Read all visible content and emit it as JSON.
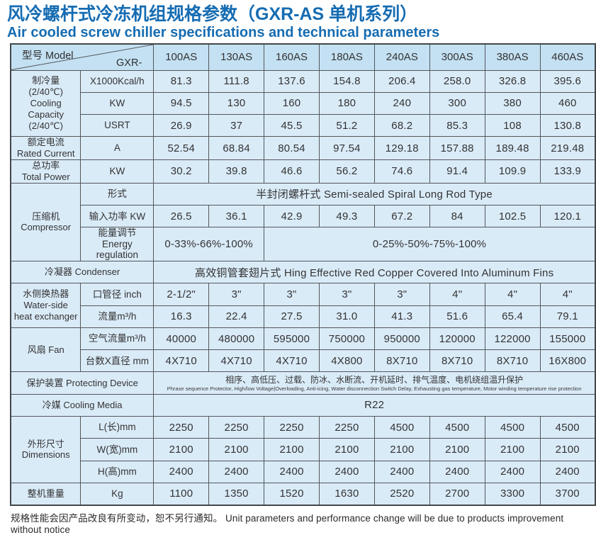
{
  "title": "风冷螺杆式冷冻机组规格参数（GXR-AS 单机系列）",
  "subtitle": "Air cooled screw chiller specifications and technical parameters",
  "footer_note": "规格性能会因产品改良有所变动，恕不另行通知。 Unit parameters and performance change will be due to products improvement without notice",
  "colors": {
    "title_blue": "#156cb2",
    "header_bg": "#c4e1f3",
    "cell_bg": "#daebf8",
    "border": "#53575a",
    "text": "#333333"
  },
  "table": {
    "header": {
      "model_label": "型号 Model",
      "model_prefix": "GXR-",
      "models": [
        "100AS",
        "130AS",
        "160AS",
        "180AS",
        "240AS",
        "300AS",
        "380AS",
        "460AS"
      ]
    },
    "rows": [
      [
        {
          "k": "label",
          "rs": 3,
          "t": "制冷量\n(2/40℃)\nCooling\nCapacity\n(2/40℃)"
        },
        {
          "k": "unit",
          "t": "X1000Kcal/h"
        },
        {
          "t": "81.3"
        },
        {
          "t": "111.8"
        },
        {
          "t": "137.6"
        },
        {
          "t": "154.8"
        },
        {
          "t": "206.4"
        },
        {
          "t": "258.0"
        },
        {
          "t": "326.8"
        },
        {
          "t": "395.6"
        }
      ],
      [
        {
          "k": "unit",
          "t": "KW"
        },
        {
          "t": "94.5"
        },
        {
          "t": "130"
        },
        {
          "t": "160"
        },
        {
          "t": "180"
        },
        {
          "t": "240"
        },
        {
          "t": "300"
        },
        {
          "t": "380"
        },
        {
          "t": "460"
        }
      ],
      [
        {
          "k": "unit",
          "t": "USRT"
        },
        {
          "t": "26.9"
        },
        {
          "t": "37"
        },
        {
          "t": "45.5"
        },
        {
          "t": "51.2"
        },
        {
          "t": "68.2"
        },
        {
          "t": "85.3"
        },
        {
          "t": "108"
        },
        {
          "t": "130.8"
        }
      ],
      [
        {
          "k": "label",
          "t": "额定电流\nRated Current"
        },
        {
          "k": "unit",
          "t": "A"
        },
        {
          "t": "52.54"
        },
        {
          "t": "68.84"
        },
        {
          "t": "80.54"
        },
        {
          "t": "97.54"
        },
        {
          "t": "129.18"
        },
        {
          "t": "157.88"
        },
        {
          "t": "189.48"
        },
        {
          "t": "219.48"
        }
      ],
      [
        {
          "k": "label",
          "t": "总功率\nTotal Power"
        },
        {
          "k": "unit",
          "t": "KW"
        },
        {
          "t": "30.2"
        },
        {
          "t": "39.8"
        },
        {
          "t": "46.6"
        },
        {
          "t": "56.2"
        },
        {
          "t": "74.6"
        },
        {
          "t": "91.4"
        },
        {
          "t": "109.9"
        },
        {
          "t": "133.9"
        }
      ],
      [
        {
          "k": "label",
          "rs": 3,
          "t": "压缩机\nCompressor"
        },
        {
          "k": "unit",
          "t": "形式"
        },
        {
          "cs": 8,
          "t": "半封闭螺杆式 Semi-sealed Spiral Long Rod Type"
        }
      ],
      [
        {
          "k": "unit",
          "t": "输入功率 KW"
        },
        {
          "t": "26.5"
        },
        {
          "t": "36.1"
        },
        {
          "t": "42.9"
        },
        {
          "t": "49.3"
        },
        {
          "t": "67.2"
        },
        {
          "t": "84"
        },
        {
          "t": "102.5"
        },
        {
          "t": "120.1"
        }
      ],
      [
        {
          "k": "unit",
          "t": "能量调节\nEnergy regulation"
        },
        {
          "cs": 2,
          "t": "0-33%-66%-100%"
        },
        {
          "cs": 6,
          "t": "0-25%-50%-75%-100%"
        }
      ],
      [
        {
          "k": "label",
          "cs": 2,
          "t": "冷凝器 Condenser"
        },
        {
          "cs": 8,
          "t": "高效铜管套翅片式 Hing Effective Red Copper Covered Into Aluminum Fins"
        }
      ],
      [
        {
          "k": "label",
          "rs": 2,
          "t": "水侧换热器\nWater-side\nheat exchanger"
        },
        {
          "k": "unit",
          "t": "口管径 inch"
        },
        {
          "t": "2-1/2\""
        },
        {
          "t": "3\""
        },
        {
          "t": "3\""
        },
        {
          "t": "3\""
        },
        {
          "t": "3\""
        },
        {
          "t": "4\""
        },
        {
          "t": "4\""
        },
        {
          "t": "4\""
        }
      ],
      [
        {
          "k": "unit",
          "t": "流量m³/h"
        },
        {
          "t": "16.3"
        },
        {
          "t": "22.4"
        },
        {
          "t": "27.5"
        },
        {
          "t": "31.0"
        },
        {
          "t": "41.3"
        },
        {
          "t": "51.6"
        },
        {
          "t": "65.4"
        },
        {
          "t": "79.1"
        }
      ],
      [
        {
          "k": "label",
          "rs": 2,
          "t": "风扇 Fan"
        },
        {
          "k": "unit",
          "t": "空气流量m³/h"
        },
        {
          "t": "40000"
        },
        {
          "t": "480000"
        },
        {
          "t": "595000"
        },
        {
          "t": "750000"
        },
        {
          "t": "950000"
        },
        {
          "t": "120000"
        },
        {
          "t": "122000"
        },
        {
          "t": "155000"
        }
      ],
      [
        {
          "k": "unit",
          "t": "台数X直径 mm"
        },
        {
          "t": "4X710"
        },
        {
          "t": "4X710"
        },
        {
          "t": "4X710"
        },
        {
          "t": "4X800"
        },
        {
          "t": "8X710"
        },
        {
          "t": "8X710"
        },
        {
          "t": "8X710"
        },
        {
          "t": "16X800"
        }
      ],
      [
        {
          "k": "label",
          "cs": 2,
          "t": "保护装置 Protecting Device"
        },
        {
          "k": "protect",
          "cs": 8,
          "t": "相序、高低压、过载、防冰、水断流、开机延时、排气温度、电机绕组温升保护",
          "sub": "Phrase sequence Protector,  High/low Voltage|Overloading,  Anti-icing,  Water disconnection Switch Delay,  Exhausting gas temperature,  Motor winding temperature rise protection"
        }
      ],
      [
        {
          "k": "label",
          "cs": 2,
          "t": "冷媒 Cooling Media"
        },
        {
          "cs": 8,
          "t": "R22"
        }
      ],
      [
        {
          "k": "label",
          "rs": 3,
          "t": "外形尺寸\nDimensions"
        },
        {
          "k": "unit",
          "t": "L(长)mm"
        },
        {
          "t": "2250"
        },
        {
          "t": "2250"
        },
        {
          "t": "2250"
        },
        {
          "t": "2250"
        },
        {
          "t": "4500"
        },
        {
          "t": "4500"
        },
        {
          "t": "4500"
        },
        {
          "t": "4500"
        }
      ],
      [
        {
          "k": "unit",
          "t": "W(宽)mm"
        },
        {
          "t": "2100"
        },
        {
          "t": "2100"
        },
        {
          "t": "2100"
        },
        {
          "t": "2100"
        },
        {
          "t": "2100"
        },
        {
          "t": "2100"
        },
        {
          "t": "2100"
        },
        {
          "t": "2100"
        }
      ],
      [
        {
          "k": "unit",
          "t": "H(高)mm"
        },
        {
          "t": "2400"
        },
        {
          "t": "2400"
        },
        {
          "t": "2400"
        },
        {
          "t": "2400"
        },
        {
          "t": "2400"
        },
        {
          "t": "2400"
        },
        {
          "t": "2400"
        },
        {
          "t": "2400"
        }
      ],
      [
        {
          "k": "label",
          "t": "整机重量"
        },
        {
          "k": "unit",
          "t": "Kg"
        },
        {
          "t": "1100"
        },
        {
          "t": "1350"
        },
        {
          "t": "1520"
        },
        {
          "t": "1630"
        },
        {
          "t": "2520"
        },
        {
          "t": "2700"
        },
        {
          "t": "3300"
        },
        {
          "t": "3700"
        }
      ]
    ]
  }
}
